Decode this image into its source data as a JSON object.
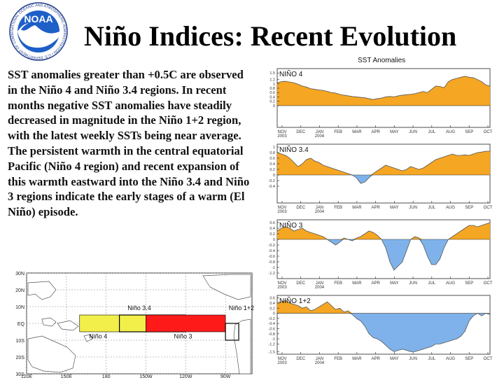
{
  "title": "Niño Indices: Recent Evolution",
  "body_text": "SST anomalies greater than +0.5C are observed in the Niño 4 and Niño 3.4 regions. In recent months negative SST anomalies have steadily decreased in magnitude in the Niño 1+2 region, with the latest weekly SSTs being near average. The persistent warmth in the central equatorial Pacific (Niño 4 region) and recent expansion of this warmth eastward into the Niño 3.4 and Niño 3 regions indicate the early stages of a warm (El Niño) episode.",
  "logo": {
    "text": "NOAA",
    "ring_text": "NATIONAL OCEANIC AND ATMOSPHERIC ADMINISTRATION • U.S. DEPARTMENT OF COMMERCE"
  },
  "colors": {
    "positive": "#f5a623",
    "negative": "#7fb2ea",
    "line": "#555555",
    "yellow": "#f2ef4a",
    "red": "#ff1a1a"
  },
  "map": {
    "lat_labels": [
      "30N",
      "20N",
      "10N",
      "EQ",
      "10S",
      "20S",
      "30S"
    ],
    "lon_labels": [
      "120E",
      "150E",
      "180",
      "150W",
      "120W",
      "90W"
    ],
    "regions": [
      {
        "name": "Niño 4",
        "lon_start": 160,
        "lon_end": 210,
        "lat_start": -5,
        "lat_end": 5,
        "color": "#f2ef4a"
      },
      {
        "name": "Niño 3.4",
        "lon_start": 190,
        "lon_end": 240,
        "lat_start": -5,
        "lat_end": 5,
        "color": "outline"
      },
      {
        "name": "Niño 3",
        "lon_start": 210,
        "lon_end": 270,
        "lat_start": -5,
        "lat_end": 5,
        "color": "#ff1a1a"
      },
      {
        "name": "Niño 1+2",
        "lon_start": 270,
        "lon_end": 280,
        "lat_start": -10,
        "lat_end": 0,
        "color": "outline"
      }
    ]
  },
  "chart_data": {
    "type": "area",
    "title": "SST Anomalies",
    "months": [
      "NOV\n2003",
      "DEC",
      "JAN\n2004",
      "FEB",
      "MAR",
      "APR",
      "MAY",
      "JUN",
      "JUL",
      "AUG",
      "SEP",
      "OCT"
    ],
    "x_unit": "weeks",
    "x_range": [
      0,
      51
    ],
    "panels": [
      {
        "name": "NIÑO 4",
        "ylim": [
          -1,
          1.7
        ],
        "yticks": [
          1.5,
          1.2,
          1,
          0.8,
          0.6,
          0.4,
          0.2,
          0
        ],
        "values": [
          1.05,
          1.1,
          1.12,
          1.08,
          1.05,
          0.98,
          0.9,
          0.85,
          0.78,
          0.75,
          0.72,
          0.7,
          0.65,
          0.6,
          0.58,
          0.52,
          0.48,
          0.45,
          0.42,
          0.4,
          0.38,
          0.36,
          0.32,
          0.28,
          0.32,
          0.35,
          0.4,
          0.42,
          0.4,
          0.45,
          0.48,
          0.5,
          0.52,
          0.55,
          0.6,
          0.65,
          0.6,
          0.75,
          0.9,
          0.88,
          0.82,
          1.1,
          1.2,
          1.25,
          1.3,
          1.35,
          1.3,
          1.28,
          1.2,
          1.1,
          0.95,
          0.9
        ]
      },
      {
        "name": "NIÑO 3.4",
        "ylim": [
          -1,
          1.1
        ],
        "yticks": [
          1,
          0.8,
          0.6,
          0.4,
          0.2,
          0,
          -0.2,
          -0.4
        ],
        "values": [
          0.8,
          0.75,
          0.7,
          0.6,
          0.45,
          0.3,
          0.4,
          0.55,
          0.6,
          0.5,
          0.45,
          0.35,
          0.3,
          0.25,
          0.2,
          0.15,
          0.1,
          0.05,
          0.0,
          -0.1,
          -0.3,
          -0.25,
          -0.1,
          0.05,
          0.15,
          0.25,
          0.35,
          0.3,
          0.25,
          0.2,
          0.15,
          0.2,
          0.3,
          0.25,
          0.2,
          0.25,
          0.35,
          0.45,
          0.55,
          0.6,
          0.65,
          0.7,
          0.75,
          0.7,
          0.7,
          0.72,
          0.7,
          0.75,
          0.8,
          0.82,
          0.85,
          0.85
        ]
      },
      {
        "name": "NIÑO 3",
        "ylim": [
          -1.4,
          0.7
        ],
        "yticks": [
          0.6,
          0.4,
          0.2,
          0,
          -0.2,
          -0.4,
          -0.6,
          -0.8,
          -1,
          -1.2
        ],
        "values": [
          0.3,
          0.4,
          0.45,
          0.4,
          0.3,
          0.35,
          0.4,
          0.3,
          0.25,
          0.2,
          0.15,
          0.1,
          0.0,
          -0.1,
          -0.2,
          -0.1,
          0.05,
          0.0,
          -0.05,
          0.05,
          0.1,
          0.2,
          0.3,
          0.25,
          0.15,
          0.0,
          -0.3,
          -0.8,
          -1.1,
          -0.95,
          -0.8,
          -0.4,
          0.0,
          0.1,
          0.05,
          -0.2,
          -0.6,
          -0.9,
          -0.9,
          -0.7,
          -0.3,
          0.0,
          0.1,
          0.2,
          0.3,
          0.4,
          0.5,
          0.5,
          0.45,
          0.5,
          0.55,
          0.6
        ]
      },
      {
        "name": "NIÑO 1+2",
        "ylim": [
          -1.6,
          0.7
        ],
        "yticks": [
          0.6,
          0.4,
          0.2,
          0,
          -0.2,
          -0.4,
          -0.6,
          -0.8,
          -1,
          -1.2,
          -1.5
        ],
        "values": [
          0.4,
          0.45,
          0.5,
          0.4,
          0.35,
          0.3,
          0.2,
          0.25,
          0.1,
          0.15,
          0.25,
          0.35,
          0.45,
          0.3,
          0.15,
          0.2,
          0.05,
          0.1,
          -0.05,
          -0.2,
          -0.3,
          -0.5,
          -0.8,
          -0.95,
          -1.0,
          -1.1,
          -1.25,
          -1.4,
          -1.5,
          -1.45,
          -1.4,
          -1.45,
          -1.5,
          -1.5,
          -1.45,
          -1.4,
          -1.35,
          -1.3,
          -1.2,
          -1.2,
          -1.15,
          -1.1,
          -1.05,
          -1.0,
          -0.9,
          -0.7,
          -0.3,
          -0.1,
          0.0,
          -0.1,
          0.0,
          -0.05
        ]
      }
    ]
  }
}
